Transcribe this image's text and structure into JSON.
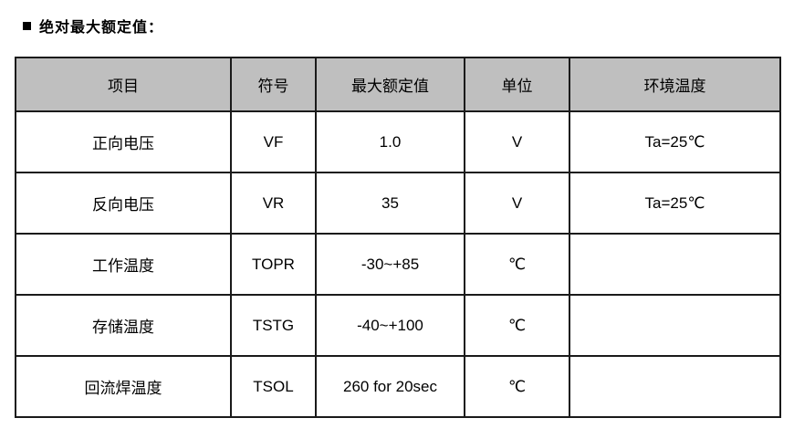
{
  "page": {
    "title": "绝对最大额定值："
  },
  "table": {
    "header_bg": "#bfbfbf",
    "headers": {
      "item": "项目",
      "symbol": "符号",
      "max_rating": "最大额定值",
      "unit": "单位",
      "ambient": "环境温度"
    },
    "rows": [
      {
        "item": "正向电压",
        "symbol": "VF",
        "max_rating": "1.0",
        "unit": "V",
        "ambient": "Ta=25℃"
      },
      {
        "item": "反向电压",
        "symbol": "VR",
        "max_rating": "35",
        "unit": "V",
        "ambient": "Ta=25℃"
      },
      {
        "item": "工作温度",
        "symbol": "TOPR",
        "max_rating": "-30~+85",
        "unit": "℃",
        "ambient": ""
      },
      {
        "item": "存储温度",
        "symbol": "TSTG",
        "max_rating": "-40~+100",
        "unit": "℃",
        "ambient": ""
      },
      {
        "item": "回流焊温度",
        "symbol": "TSOL",
        "max_rating": "260 for 20sec",
        "unit": "℃",
        "ambient": ""
      }
    ]
  }
}
